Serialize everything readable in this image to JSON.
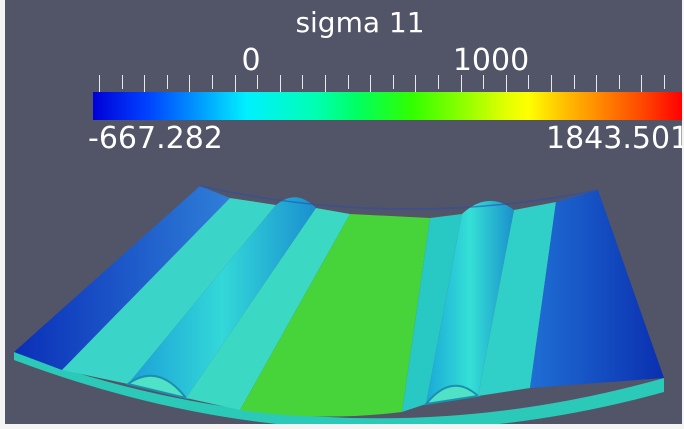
{
  "colorbar": {
    "title": "sigma 11",
    "range_min": "-667.282",
    "range_max": "1843.501",
    "tick_labels": [
      "0",
      "1000"
    ]
  },
  "field_range": [
    -667.282,
    1843.501
  ],
  "colors": {
    "background": "#525467",
    "low": "#0000d8",
    "mid": "#00ff60",
    "high": "#ff0000"
  },
  "surface_levels": {
    "outer_edges": 0.17,
    "side_strips": 0.3,
    "ribs": 0.3,
    "center_strip": 0.48
  }
}
